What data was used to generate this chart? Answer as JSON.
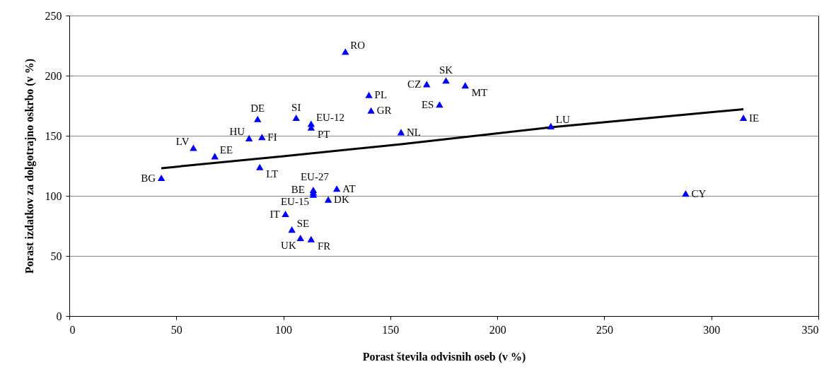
{
  "chart_data": {
    "type": "scatter",
    "xlabel": "Porast števila odvisnih oseb (v %)",
    "ylabel": "Porast izdatkov za dolgotrajno oskrbo (v %)",
    "xlim": [
      0,
      350
    ],
    "xticks": [
      0,
      50,
      100,
      150,
      200,
      250,
      300,
      350
    ],
    "ylim": [
      0,
      250
    ],
    "yticks": [
      0,
      50,
      100,
      150,
      200,
      250
    ],
    "grid": "y",
    "series": [
      {
        "marker": "triangle",
        "color": "#0000ff",
        "x": [
          43,
          58,
          68,
          84,
          90,
          88,
          89,
          106,
          113,
          113,
          114,
          114,
          114,
          125,
          121,
          101,
          104,
          108,
          113,
          129,
          140,
          141,
          155,
          167,
          173,
          176,
          185,
          225,
          315,
          288
        ],
        "values": [
          115,
          140,
          133,
          148,
          149,
          164,
          124,
          165,
          160,
          157,
          105,
          103,
          101,
          106,
          97,
          85,
          72,
          65,
          64,
          220,
          184,
          171,
          153,
          193,
          176,
          196,
          192,
          158,
          165,
          102
        ]
      },
      {
        "type": "line",
        "color": "#000000",
        "x": [
          43,
          100,
          155,
          225,
          290,
          315
        ],
        "values": [
          123,
          133,
          143,
          157,
          168,
          172
        ]
      }
    ],
    "annotations": [
      {
        "text": "BG",
        "x": 43,
        "y": 115
      },
      {
        "text": "LV",
        "x": 58,
        "y": 140
      },
      {
        "text": "EE",
        "x": 68,
        "y": 133
      },
      {
        "text": "HU",
        "x": 84,
        "y": 148
      },
      {
        "text": "FI",
        "x": 90,
        "y": 149
      },
      {
        "text": "DE",
        "x": 88,
        "y": 164
      },
      {
        "text": "LT",
        "x": 89,
        "y": 124
      },
      {
        "text": "SI",
        "x": 106,
        "y": 165
      },
      {
        "text": "EU-12",
        "x": 113,
        "y": 160
      },
      {
        "text": "PT",
        "x": 113,
        "y": 157
      },
      {
        "text": "EU-27",
        "x": 114,
        "y": 105
      },
      {
        "text": "BE",
        "x": 114,
        "y": 103
      },
      {
        "text": "EU-15",
        "x": 114,
        "y": 101
      },
      {
        "text": "AT",
        "x": 125,
        "y": 106
      },
      {
        "text": "DK",
        "x": 121,
        "y": 97
      },
      {
        "text": "IT",
        "x": 101,
        "y": 85
      },
      {
        "text": "SE",
        "x": 104,
        "y": 72
      },
      {
        "text": "UK",
        "x": 108,
        "y": 65
      },
      {
        "text": "FR",
        "x": 113,
        "y": 64
      },
      {
        "text": "RO",
        "x": 129,
        "y": 220
      },
      {
        "text": "PL",
        "x": 140,
        "y": 184
      },
      {
        "text": "GR",
        "x": 141,
        "y": 171
      },
      {
        "text": "NL",
        "x": 155,
        "y": 153
      },
      {
        "text": "CZ",
        "x": 167,
        "y": 193
      },
      {
        "text": "ES",
        "x": 173,
        "y": 176
      },
      {
        "text": "SK",
        "x": 176,
        "y": 196
      },
      {
        "text": "MT",
        "x": 185,
        "y": 192
      },
      {
        "text": "LU",
        "x": 225,
        "y": 158
      },
      {
        "text": "IE",
        "x": 315,
        "y": 165
      },
      {
        "text": "CY",
        "x": 288,
        "y": 102
      }
    ]
  }
}
